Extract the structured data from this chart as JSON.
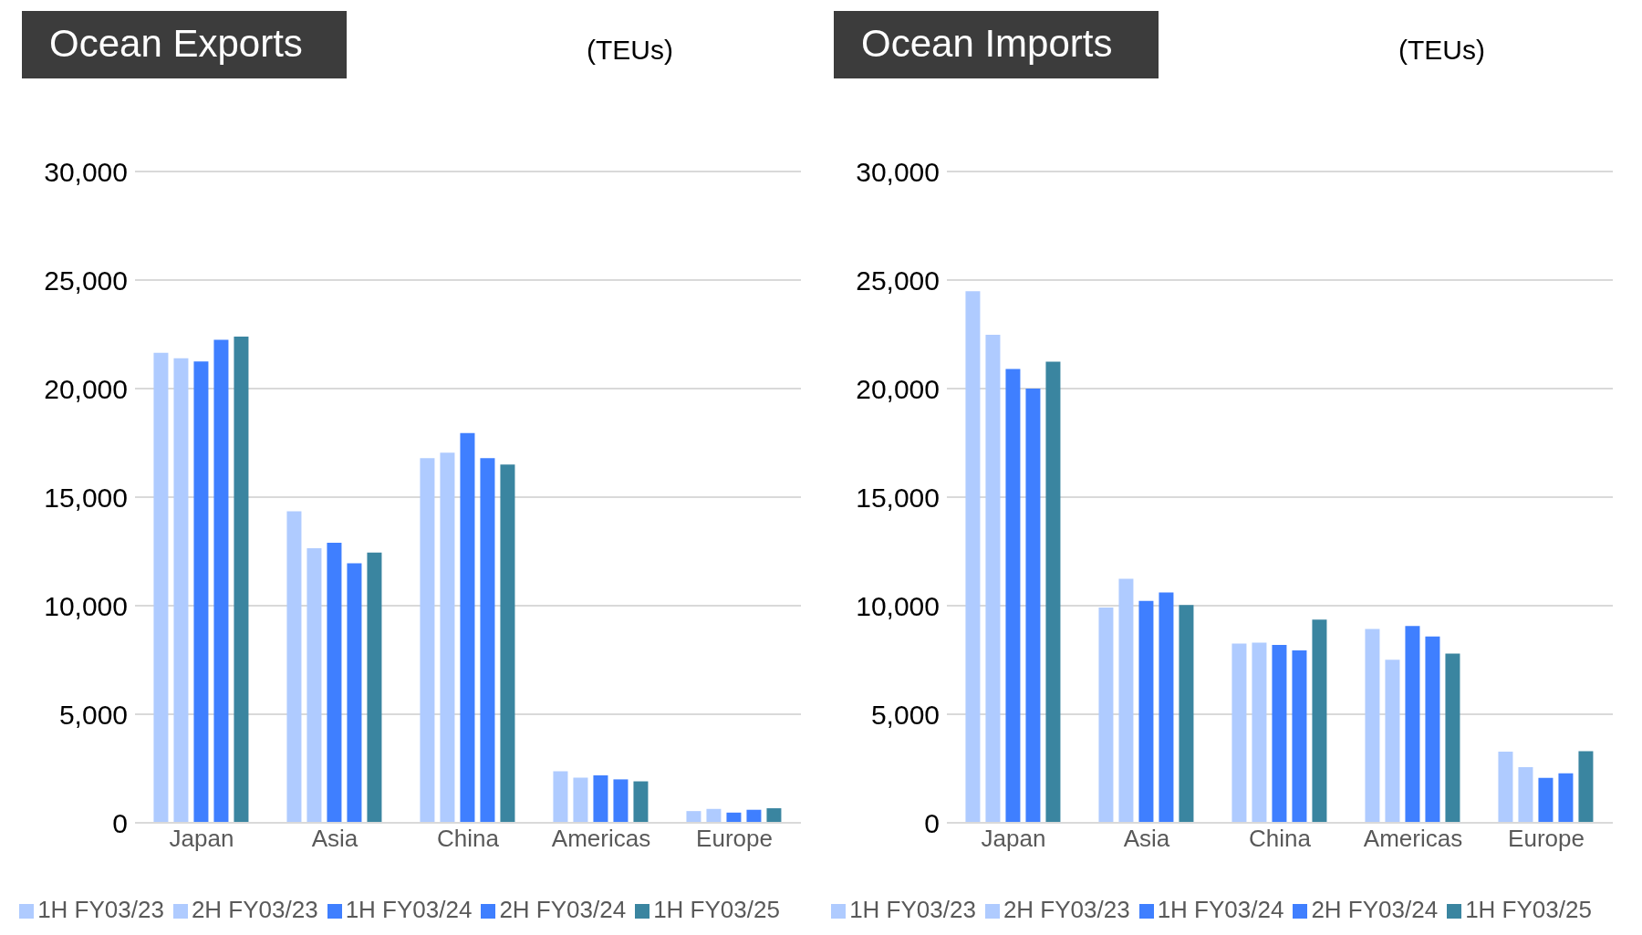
{
  "chart_data": [
    {
      "type": "bar",
      "title": "Ocean Exports",
      "ylabel": "(TEUs)",
      "categories": [
        "Japan",
        "Asia",
        "China",
        "Americas",
        "Europe"
      ],
      "series": [
        {
          "name": "1H FY03/23",
          "color": "#afcbff",
          "values": [
            21650,
            14350,
            16800,
            2370,
            540
          ]
        },
        {
          "name": "2H FY03/23",
          "color": "#afcbff",
          "values": [
            21400,
            12650,
            17050,
            2080,
            640
          ]
        },
        {
          "name": "1H FY03/24",
          "color": "#3f7fff",
          "values": [
            21250,
            12900,
            17950,
            2190,
            470
          ]
        },
        {
          "name": "2H FY03/24",
          "color": "#3f7fff",
          "values": [
            22250,
            11950,
            16800,
            2000,
            600
          ]
        },
        {
          "name": "1H FY03/25",
          "color": "#3a85a0",
          "values": [
            22400,
            12450,
            16500,
            1910,
            670
          ]
        }
      ],
      "ylim": [
        0,
        30000
      ],
      "yticks": [
        0,
        {
          "value": 5000,
          "label": "5,000"
        },
        {
          "value": 10000,
          "label": "10,000"
        },
        {
          "value": 15000,
          "label": "15,000"
        },
        {
          "value": 20000,
          "label": "20,000"
        },
        {
          "value": 25000,
          "label": "25,000"
        },
        {
          "value": 30000,
          "label": "30,000"
        }
      ],
      "grid": "y",
      "legend": "bottom"
    },
    {
      "type": "bar",
      "title": "Ocean Imports",
      "ylabel": "(TEUs)",
      "categories": [
        "Japan",
        "Asia",
        "China",
        "Americas",
        "Europe"
      ],
      "series": [
        {
          "name": "1H FY03/23",
          "color": "#afcbff",
          "values": [
            24490,
            9920,
            8260,
            8930,
            3280
          ]
        },
        {
          "name": "2H FY03/23",
          "color": "#afcbff",
          "values": [
            22480,
            11240,
            8300,
            7510,
            2560
          ]
        },
        {
          "name": "1H FY03/24",
          "color": "#3f7fff",
          "values": [
            20900,
            10220,
            8190,
            9070,
            2070
          ]
        },
        {
          "name": "2H FY03/24",
          "color": "#3f7fff",
          "values": [
            20000,
            10610,
            7940,
            8580,
            2280
          ]
        },
        {
          "name": "1H FY03/25",
          "color": "#3a85a0",
          "values": [
            21240,
            10030,
            9360,
            7790,
            3300
          ]
        }
      ],
      "ylim": [
        0,
        30000
      ],
      "yticks": [
        0,
        {
          "value": 5000,
          "label": "5,000"
        },
        {
          "value": 10000,
          "label": "10,000"
        },
        {
          "value": 15000,
          "label": "15,000"
        },
        {
          "value": 20000,
          "label": "20,000"
        },
        {
          "value": 25000,
          "label": "25,000"
        },
        {
          "value": 30000,
          "label": "30,000"
        }
      ],
      "grid": "y",
      "legend": "bottom"
    }
  ]
}
